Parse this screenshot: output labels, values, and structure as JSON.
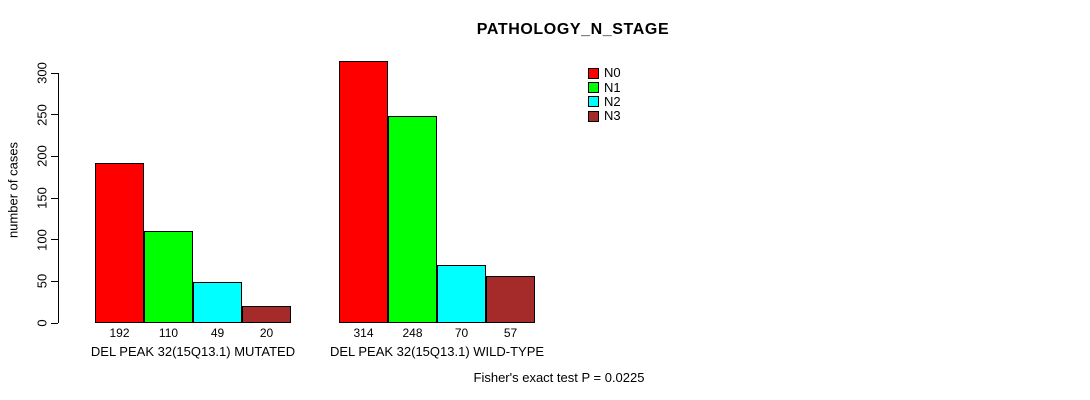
{
  "title": "PATHOLOGY_N_STAGE",
  "ylabel": "number of cases",
  "footer": "Fisher's exact test P = 0.0225",
  "chart_data": {
    "type": "bar",
    "categories": [
      "DEL PEAK 32(15Q13.1) MUTATED",
      "DEL PEAK 32(15Q13.1) WILD-TYPE"
    ],
    "series": [
      {
        "name": "N0",
        "color": "#ff0000",
        "values": [
          192,
          314
        ]
      },
      {
        "name": "N1",
        "color": "#00ff00",
        "values": [
          110,
          248
        ]
      },
      {
        "name": "N2",
        "color": "#00ffff",
        "values": [
          49,
          70
        ]
      },
      {
        "name": "N3",
        "color": "#a52a2a",
        "values": [
          20,
          57
        ]
      }
    ],
    "yticks": [
      0,
      50,
      100,
      150,
      200,
      250,
      300
    ],
    "ylim": [
      0,
      300
    ],
    "bar_value_labels": true,
    "legend_position": "top-right",
    "grid": false
  }
}
